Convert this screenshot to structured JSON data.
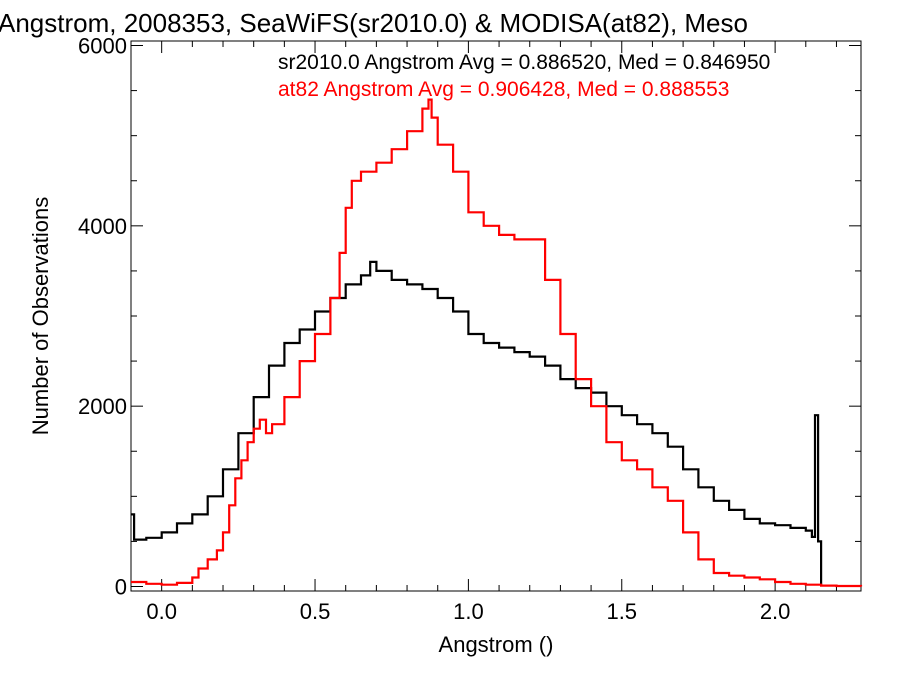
{
  "chart_data": {
    "type": "line",
    "title": "Angstrom, 2008353, SeaWiFS(sr2010.0) & MODISA(at82), Meso",
    "xlabel": "Angstrom ()",
    "ylabel": "Number of Observations",
    "xlim": [
      -0.1,
      2.28
    ],
    "ylim": [
      -50,
      6050
    ],
    "x_ticks": [
      0.0,
      0.5,
      1.0,
      1.5,
      2.0
    ],
    "x_tick_labels": [
      "0.0",
      "0.5",
      "1.0",
      "1.5",
      "2.0"
    ],
    "y_ticks": [
      0,
      2000,
      4000,
      6000
    ],
    "y_tick_labels": [
      "0",
      "2000",
      "4000",
      "6000"
    ],
    "grid": false,
    "legend_position": "top-right",
    "series": [
      {
        "name": "sr2010.0 Angstrom Avg = 0.886520, Med = 0.846950",
        "color": "#000000",
        "points": [
          [
            -0.1,
            800
          ],
          [
            -0.09,
            520
          ],
          [
            -0.05,
            540
          ],
          [
            0.0,
            600
          ],
          [
            0.05,
            700
          ],
          [
            0.1,
            800
          ],
          [
            0.15,
            1000
          ],
          [
            0.2,
            1300
          ],
          [
            0.25,
            1700
          ],
          [
            0.3,
            2100
          ],
          [
            0.35,
            2450
          ],
          [
            0.4,
            2700
          ],
          [
            0.45,
            2850
          ],
          [
            0.5,
            3050
          ],
          [
            0.55,
            3200
          ],
          [
            0.6,
            3350
          ],
          [
            0.65,
            3450
          ],
          [
            0.68,
            3600
          ],
          [
            0.7,
            3500
          ],
          [
            0.75,
            3400
          ],
          [
            0.8,
            3350
          ],
          [
            0.85,
            3300
          ],
          [
            0.9,
            3200
          ],
          [
            0.95,
            3050
          ],
          [
            1.0,
            2800
          ],
          [
            1.05,
            2700
          ],
          [
            1.1,
            2650
          ],
          [
            1.15,
            2600
          ],
          [
            1.2,
            2550
          ],
          [
            1.25,
            2450
          ],
          [
            1.3,
            2300
          ],
          [
            1.35,
            2200
          ],
          [
            1.4,
            2150
          ],
          [
            1.45,
            2000
          ],
          [
            1.5,
            1900
          ],
          [
            1.55,
            1800
          ],
          [
            1.6,
            1700
          ],
          [
            1.65,
            1550
          ],
          [
            1.7,
            1300
          ],
          [
            1.75,
            1100
          ],
          [
            1.8,
            950
          ],
          [
            1.85,
            850
          ],
          [
            1.9,
            750
          ],
          [
            1.95,
            700
          ],
          [
            2.0,
            680
          ],
          [
            2.05,
            650
          ],
          [
            2.1,
            620
          ],
          [
            2.12,
            550
          ],
          [
            2.13,
            1900
          ],
          [
            2.14,
            500
          ],
          [
            2.15,
            0
          ]
        ]
      },
      {
        "name": "at82 Angstrom Avg = 0.906428, Med = 0.888553",
        "color": "#ff0000",
        "points": [
          [
            -0.1,
            50
          ],
          [
            -0.05,
            30
          ],
          [
            0.0,
            20
          ],
          [
            0.05,
            40
          ],
          [
            0.1,
            100
          ],
          [
            0.12,
            200
          ],
          [
            0.15,
            300
          ],
          [
            0.18,
            400
          ],
          [
            0.2,
            600
          ],
          [
            0.22,
            900
          ],
          [
            0.24,
            1200
          ],
          [
            0.26,
            1400
          ],
          [
            0.28,
            1600
          ],
          [
            0.3,
            1750
          ],
          [
            0.32,
            1850
          ],
          [
            0.34,
            1700
          ],
          [
            0.36,
            1800
          ],
          [
            0.4,
            2100
          ],
          [
            0.45,
            2500
          ],
          [
            0.5,
            2800
          ],
          [
            0.55,
            3200
          ],
          [
            0.58,
            3700
          ],
          [
            0.6,
            4200
          ],
          [
            0.62,
            4500
          ],
          [
            0.65,
            4600
          ],
          [
            0.7,
            4700
          ],
          [
            0.75,
            4850
          ],
          [
            0.8,
            5050
          ],
          [
            0.85,
            5300
          ],
          [
            0.87,
            5400
          ],
          [
            0.88,
            5200
          ],
          [
            0.9,
            4900
          ],
          [
            0.95,
            4600
          ],
          [
            1.0,
            4150
          ],
          [
            1.05,
            4000
          ],
          [
            1.1,
            3900
          ],
          [
            1.15,
            3850
          ],
          [
            1.2,
            3850
          ],
          [
            1.25,
            3400
          ],
          [
            1.3,
            2800
          ],
          [
            1.35,
            2300
          ],
          [
            1.4,
            2000
          ],
          [
            1.45,
            1600
          ],
          [
            1.5,
            1400
          ],
          [
            1.55,
            1300
          ],
          [
            1.6,
            1100
          ],
          [
            1.65,
            950
          ],
          [
            1.7,
            600
          ],
          [
            1.75,
            300
          ],
          [
            1.8,
            150
          ],
          [
            1.85,
            120
          ],
          [
            1.9,
            100
          ],
          [
            1.95,
            80
          ],
          [
            2.0,
            50
          ],
          [
            2.05,
            30
          ],
          [
            2.1,
            20
          ],
          [
            2.15,
            10
          ],
          [
            2.2,
            5
          ],
          [
            2.28,
            0
          ]
        ]
      }
    ]
  }
}
